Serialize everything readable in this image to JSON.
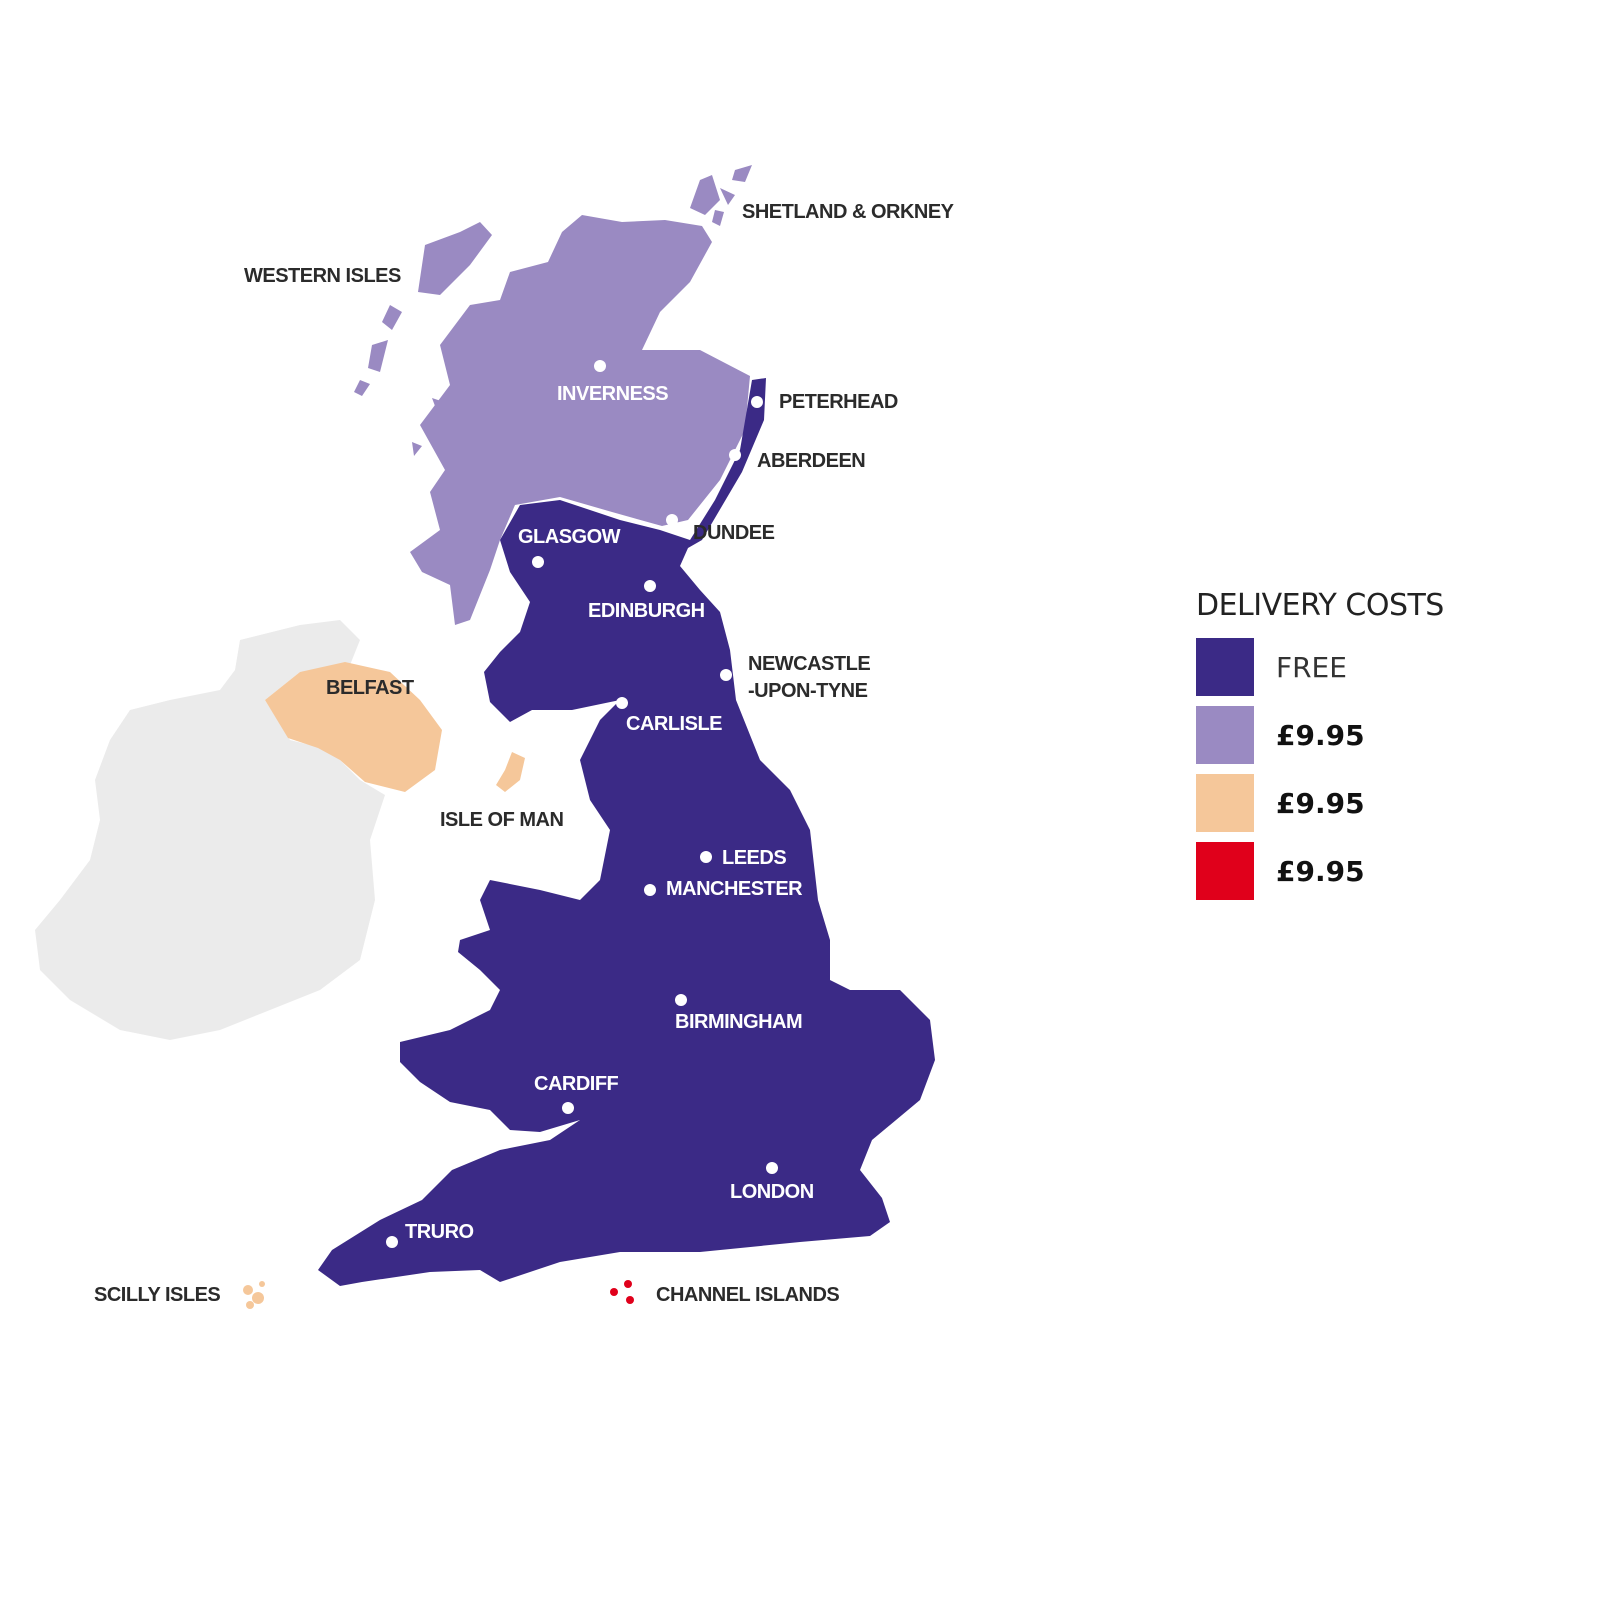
{
  "colors": {
    "free": "#3b2a86",
    "zone1": "#9a8ac2",
    "zone2": "#f5c79a",
    "zone3": "#e0001b",
    "ireland": "#ebebeb"
  },
  "legend": {
    "title": "DELIVERY COSTS",
    "items": [
      {
        "label": "FREE",
        "color": "#3b2a86"
      },
      {
        "label": "£9.95",
        "color": "#9a8ac2"
      },
      {
        "label": "£9.95",
        "color": "#f5c79a"
      },
      {
        "label": "£9.95",
        "color": "#e0001b"
      }
    ]
  },
  "regions": {
    "shetland": "SHETLAND & ORKNEY",
    "western_isles": "WESTERN ISLES",
    "isle_of_man": "ISLE OF MAN",
    "scilly": "SCILLY ISLES",
    "channel": "CHANNEL ISLANDS"
  },
  "cities": {
    "inverness": "INVERNESS",
    "peterhead": "PETERHEAD",
    "aberdeen": "ABERDEEN",
    "dundee": "DUNDEE",
    "glasgow": "GLASGOW",
    "edinburgh": "EDINBURGH",
    "newcastle1": "NEWCASTLE",
    "newcastle2": "-UPON-TYNE",
    "belfast": "BELFAST",
    "carlisle": "CARLISLE",
    "leeds": "LEEDS",
    "manchester": "MANCHESTER",
    "birmingham": "BIRMINGHAM",
    "cardiff": "CARDIFF",
    "london": "LONDON",
    "truro": "TRURO"
  }
}
